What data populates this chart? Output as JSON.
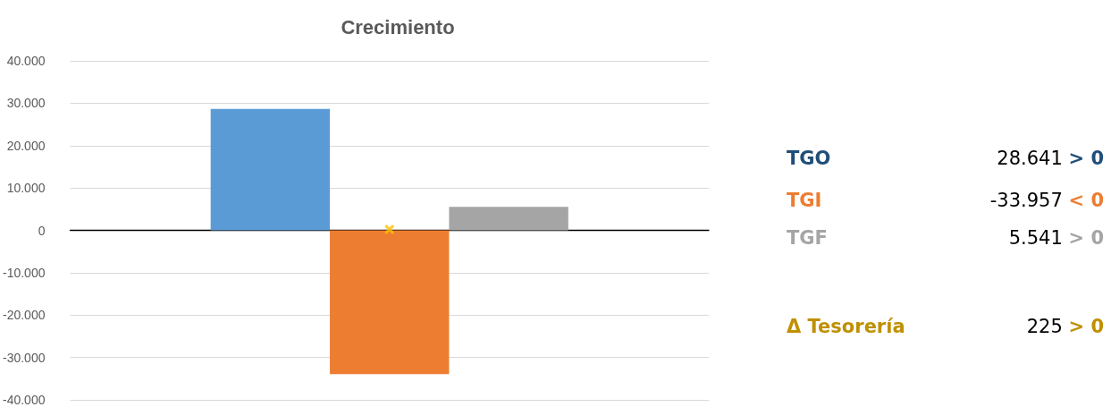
{
  "chart_data": [
    {
      "type": "bar",
      "title": "Crecimiento",
      "categories": [
        null
      ],
      "series": [
        {
          "color": "#5b9bd5",
          "values": [
            28641
          ]
        },
        {
          "color": "#ed7d31",
          "values": [
            -33957
          ]
        },
        {
          "color": "#a5a5a5",
          "values": [
            5541
          ]
        },
        {
          "type": "scatter",
          "marker": "cross",
          "color": "#ffc000",
          "values": [
            225
          ]
        }
      ],
      "ylim": [
        -40000,
        40000
      ],
      "yticks": [
        {
          "value": -40000,
          "label": "-40.000"
        },
        {
          "value": -30000,
          "label": "-30.000"
        },
        {
          "value": -20000,
          "label": "-20.000"
        },
        {
          "value": -10000,
          "label": "-10.000"
        },
        0,
        {
          "value": 10000,
          "label": "10.000"
        },
        {
          "value": 20000,
          "label": "20.000"
        },
        {
          "value": 30000,
          "label": "30.000"
        },
        {
          "value": 40000,
          "label": "40.000"
        }
      ],
      "grid": "y"
    },
    {
      "type": "other",
      "annotations": [
        "TGO",
        "28.641 > 0",
        "TGI",
        "-33.957 < 0",
        "TGF",
        "5.541 > 0",
        "Δ Tesorería",
        "225 > 0"
      ]
    }
  ]
}
